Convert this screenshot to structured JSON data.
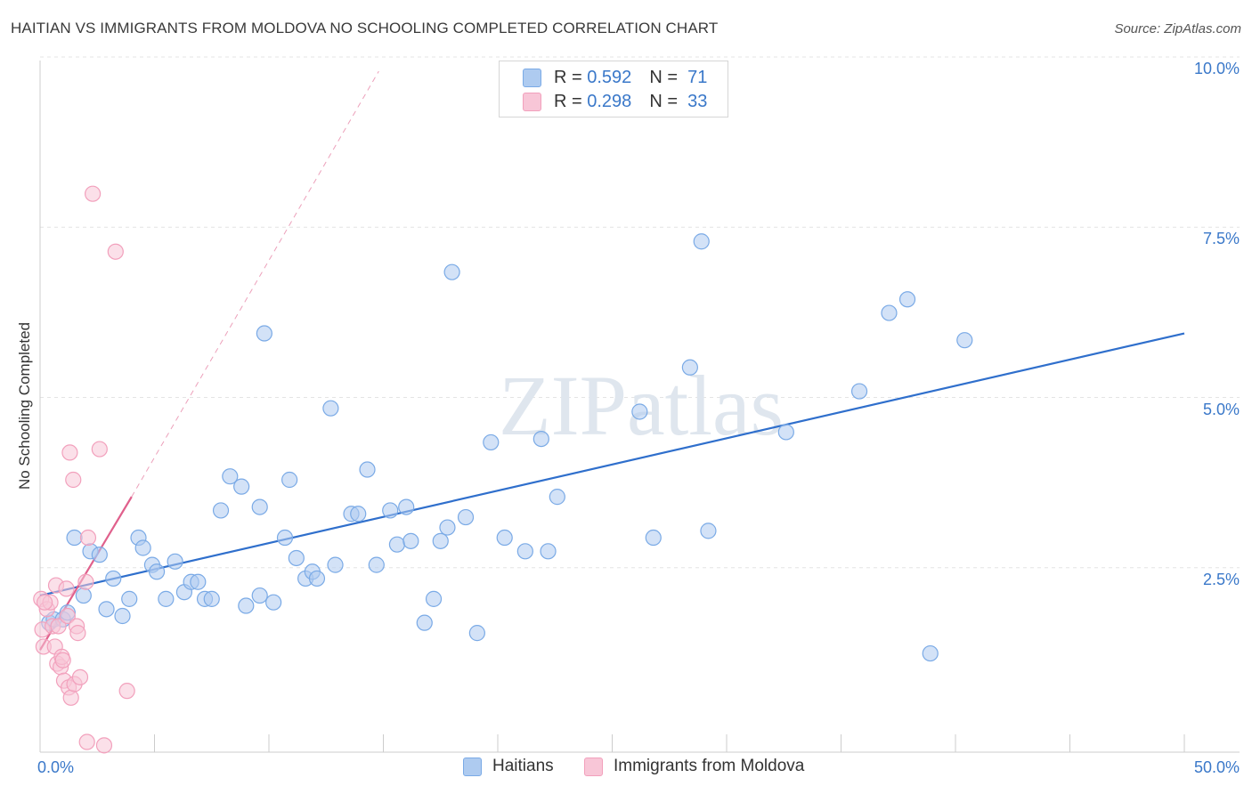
{
  "chart_data": {
    "type": "scatter",
    "title": "HAITIAN VS IMMIGRANTS FROM MOLDOVA NO SCHOOLING COMPLETED CORRELATION CHART",
    "source": "Source: ZipAtlas.com",
    "ylabel": "No Schooling Completed",
    "xlabel": "",
    "xlim": [
      0,
      50
    ],
    "ylim": [
      0,
      10
    ],
    "x_tick_labels": [
      "0.0%",
      "50.0%"
    ],
    "y_ticks": [
      2.5,
      5.0,
      7.5,
      10.0
    ],
    "y_tick_labels": [
      "2.5%",
      "5.0%",
      "7.5%",
      "10.0%"
    ],
    "watermark": "ZIPatlas",
    "legend": [
      {
        "r_label": "R =",
        "r_value": "0.592",
        "n_label": "N =",
        "n_value": "71"
      },
      {
        "r_label": "R =",
        "r_value": "0.298",
        "n_label": "N =",
        "n_value": "33"
      }
    ],
    "series": [
      {
        "name": "Haitians",
        "color": "#7aaae6",
        "fill": "#aecbf0",
        "line_color": "#2f6fcc",
        "trend": {
          "x0": 0,
          "y0": 2.3,
          "x1": 50,
          "y1": 6.15
        },
        "points": [
          [
            0.4,
            1.9
          ],
          [
            0.6,
            1.95
          ],
          [
            1.0,
            1.95
          ],
          [
            1.2,
            2.05
          ],
          [
            1.5,
            3.15
          ],
          [
            1.9,
            2.3
          ],
          [
            2.2,
            2.95
          ],
          [
            2.6,
            2.9
          ],
          [
            2.9,
            2.1
          ],
          [
            3.2,
            2.55
          ],
          [
            3.6,
            2.0
          ],
          [
            3.9,
            2.25
          ],
          [
            4.3,
            3.15
          ],
          [
            4.5,
            3.0
          ],
          [
            4.9,
            2.75
          ],
          [
            5.1,
            2.65
          ],
          [
            5.5,
            2.25
          ],
          [
            5.9,
            2.8
          ],
          [
            6.3,
            2.35
          ],
          [
            6.6,
            2.5
          ],
          [
            6.9,
            2.5
          ],
          [
            7.2,
            2.25
          ],
          [
            7.5,
            2.25
          ],
          [
            7.9,
            3.55
          ],
          [
            8.3,
            4.05
          ],
          [
            8.8,
            3.9
          ],
          [
            9.0,
            2.15
          ],
          [
            9.6,
            2.3
          ],
          [
            9.6,
            3.6
          ],
          [
            9.8,
            6.15
          ],
          [
            10.2,
            2.2
          ],
          [
            10.7,
            3.15
          ],
          [
            10.9,
            4.0
          ],
          [
            11.2,
            2.85
          ],
          [
            11.6,
            2.55
          ],
          [
            11.9,
            2.65
          ],
          [
            12.1,
            2.55
          ],
          [
            12.7,
            5.05
          ],
          [
            12.9,
            2.75
          ],
          [
            13.6,
            3.5
          ],
          [
            13.9,
            3.5
          ],
          [
            14.3,
            4.15
          ],
          [
            14.7,
            2.75
          ],
          [
            15.3,
            3.55
          ],
          [
            15.6,
            3.05
          ],
          [
            16.0,
            3.6
          ],
          [
            16.2,
            3.1
          ],
          [
            16.8,
            1.9
          ],
          [
            17.2,
            2.25
          ],
          [
            17.5,
            3.1
          ],
          [
            17.8,
            3.3
          ],
          [
            18.0,
            7.05
          ],
          [
            18.6,
            3.45
          ],
          [
            19.1,
            1.75
          ],
          [
            19.7,
            4.55
          ],
          [
            20.3,
            3.15
          ],
          [
            21.2,
            2.95
          ],
          [
            21.9,
            4.6
          ],
          [
            22.2,
            2.95
          ],
          [
            22.6,
            3.75
          ],
          [
            26.2,
            5.0
          ],
          [
            26.8,
            3.15
          ],
          [
            28.4,
            5.65
          ],
          [
            28.9,
            7.5
          ],
          [
            29.2,
            3.25
          ],
          [
            32.6,
            4.7
          ],
          [
            35.8,
            5.3
          ],
          [
            37.1,
            6.45
          ],
          [
            37.9,
            6.65
          ],
          [
            38.9,
            1.45
          ],
          [
            40.4,
            6.05
          ]
        ]
      },
      {
        "name": "Immigrants from Moldova",
        "color": "#f2a0bc",
        "fill": "#f8c6d7",
        "line_color": "#e0608c",
        "trend": {
          "x0": 0,
          "y0": 1.5,
          "x1": 4.0,
          "y1": 3.75
        },
        "trend_ext": {
          "x0": 4.0,
          "y0": 3.75,
          "x1": 14.8,
          "y1": 10.0
        },
        "points": [
          [
            0.05,
            2.25
          ],
          [
            0.1,
            1.8
          ],
          [
            0.15,
            1.55
          ],
          [
            0.3,
            2.1
          ],
          [
            0.45,
            2.2
          ],
          [
            0.55,
            1.85
          ],
          [
            0.65,
            1.55
          ],
          [
            0.7,
            2.45
          ],
          [
            0.75,
            1.3
          ],
          [
            0.8,
            1.85
          ],
          [
            0.9,
            1.25
          ],
          [
            0.95,
            1.4
          ],
          [
            1.0,
            1.35
          ],
          [
            1.05,
            1.05
          ],
          [
            1.15,
            2.4
          ],
          [
            1.2,
            2.0
          ],
          [
            1.25,
            0.95
          ],
          [
            1.3,
            4.4
          ],
          [
            1.35,
            0.8
          ],
          [
            1.45,
            4.0
          ],
          [
            1.5,
            1.0
          ],
          [
            1.6,
            1.85
          ],
          [
            1.65,
            1.75
          ],
          [
            1.75,
            1.1
          ],
          [
            2.0,
            2.5
          ],
          [
            2.05,
            0.15
          ],
          [
            2.1,
            3.15
          ],
          [
            2.3,
            8.2
          ],
          [
            2.6,
            4.45
          ],
          [
            2.8,
            0.1
          ],
          [
            3.3,
            7.35
          ],
          [
            3.8,
            0.9
          ],
          [
            0.2,
            2.2
          ]
        ]
      }
    ]
  }
}
